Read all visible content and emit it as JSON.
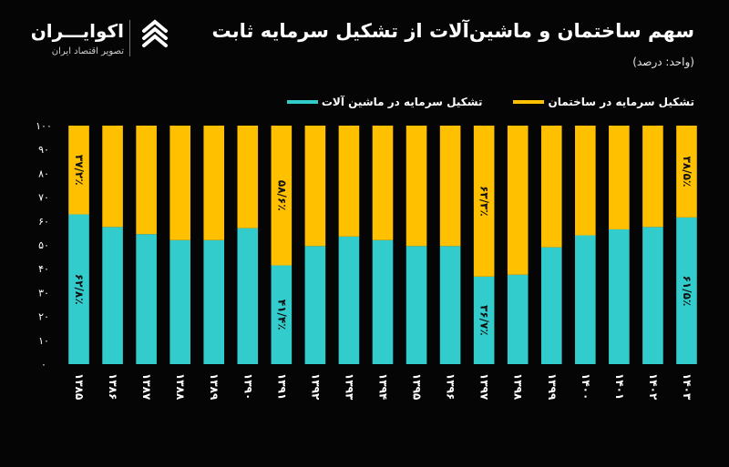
{
  "header": {
    "title": "سهم ساختمان و ماشین‌آلات از تشکیل سرمایه ثابت",
    "unit": "(واحد: درصد)"
  },
  "logo": {
    "name": "اکوایـــران",
    "subtitle": "تصویر اقتصاد ایران",
    "icon": "ecoiran-logo-icon"
  },
  "colors": {
    "machinery": "#33cccc",
    "construction": "#ffc000",
    "background": "#050506"
  },
  "legend": [
    {
      "label": "تشکیل سرمایه در ماشین آلات",
      "color": "#33cccc"
    },
    {
      "label": "تشکیل سرمایه در ساختمان",
      "color": "#ffc000"
    }
  ],
  "chart_data": {
    "type": "bar",
    "stacked": true,
    "categories": [
      "۱۳۸۵",
      "۱۳۸۶",
      "۱۳۸۷",
      "۱۳۸۸",
      "۱۳۸۹",
      "۱۳۹۰",
      "۱۳۹۱",
      "۱۳۹۲",
      "۱۳۹۳",
      "۱۳۹۴",
      "۱۳۹۵",
      "۱۳۹۶",
      "۱۳۹۷",
      "۱۳۹۸",
      "۱۳۹۹",
      "۱۴۰۰",
      "۱۴۰۱",
      "۱۴۰۲",
      "۱۴۰۳"
    ],
    "series": [
      {
        "name": "تشکیل سرمایه در ماشین آلات",
        "color": "#33cccc",
        "values": [
          62.8,
          57.5,
          54.5,
          52.0,
          52.0,
          57.0,
          41.4,
          49.5,
          53.5,
          52.0,
          49.5,
          49.5,
          36.7,
          37.5,
          49.0,
          54.0,
          56.5,
          57.5,
          61.5
        ]
      },
      {
        "name": "تشکیل سرمایه در ساختمان",
        "color": "#ffc000",
        "values": [
          37.2,
          42.5,
          45.5,
          48.0,
          48.0,
          43.0,
          58.6,
          50.5,
          46.5,
          48.0,
          50.5,
          50.5,
          63.3,
          62.5,
          51.0,
          46.0,
          43.5,
          42.5,
          38.5
        ]
      }
    ],
    "ylim": [
      0,
      100
    ],
    "yticks": [
      "۰",
      "۱۰",
      "۲۰",
      "۳۰",
      "۴۰",
      "۵۰",
      "۶۰",
      "۷۰",
      "۸۰",
      "۹۰",
      "۱۰۰"
    ],
    "data_labels": [
      {
        "category_index": 0,
        "series_index": 0,
        "text": "۶۲/۸٪"
      },
      {
        "category_index": 0,
        "series_index": 1,
        "text": "۳۷/۲٪"
      },
      {
        "category_index": 6,
        "series_index": 0,
        "text": "۴۱/۴٪"
      },
      {
        "category_index": 6,
        "series_index": 1,
        "text": "۵۸/۶٪"
      },
      {
        "category_index": 12,
        "series_index": 0,
        "text": "۳۶/۷٪"
      },
      {
        "category_index": 12,
        "series_index": 1,
        "text": "۶۳/۳٪"
      },
      {
        "category_index": 18,
        "series_index": 0,
        "text": "۶۱/۵٪"
      },
      {
        "category_index": 18,
        "series_index": 1,
        "text": "۳۸/۵٪"
      }
    ],
    "grid": false,
    "legend_position": "top-right"
  }
}
